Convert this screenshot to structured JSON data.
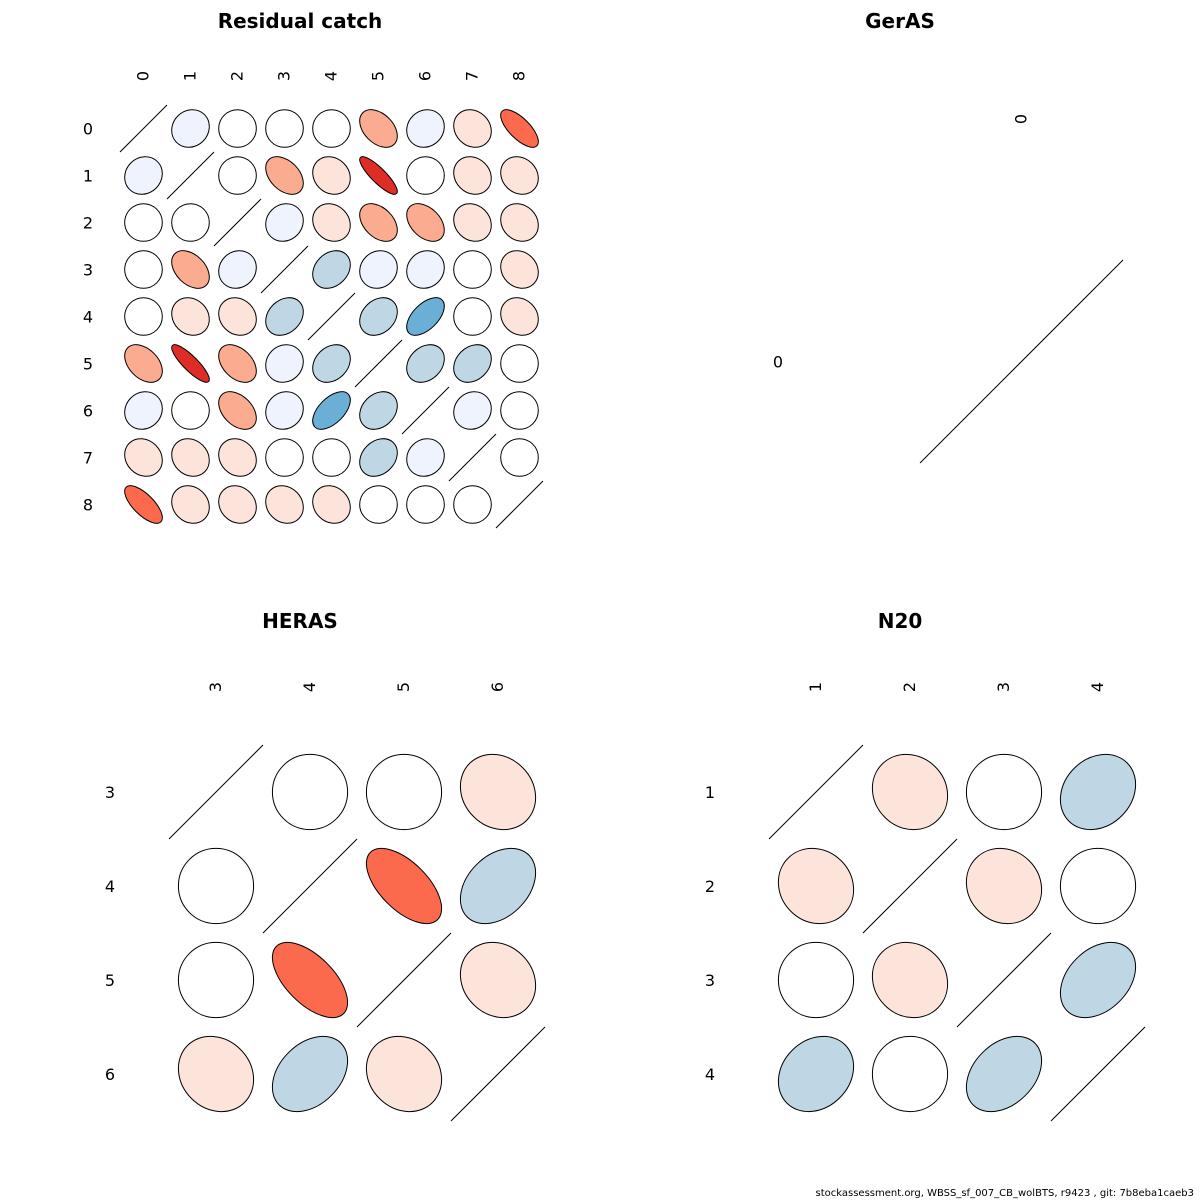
{
  "chart_data": [
    {
      "type": "heatmap",
      "style": "ellipse-correlation",
      "title": "Residual catch",
      "labels": [
        "0",
        "1",
        "2",
        "3",
        "4",
        "5",
        "6",
        "7",
        "8"
      ],
      "matrix": [
        [
          1.0,
          0.1,
          0.0,
          0.0,
          0.0,
          -0.4,
          0.1,
          -0.15,
          -0.7
        ],
        [
          0.1,
          1.0,
          0.0,
          -0.4,
          -0.15,
          -0.85,
          0.0,
          -0.15,
          -0.15
        ],
        [
          0.0,
          0.0,
          1.0,
          0.1,
          -0.15,
          -0.4,
          -0.4,
          -0.15,
          -0.15
        ],
        [
          0.0,
          -0.4,
          0.1,
          1.0,
          0.25,
          0.1,
          0.1,
          0.0,
          -0.15
        ],
        [
          0.0,
          -0.15,
          -0.15,
          0.25,
          1.0,
          0.25,
          0.55,
          0.0,
          -0.15
        ],
        [
          -0.4,
          -0.85,
          -0.4,
          0.1,
          0.25,
          1.0,
          0.25,
          0.25,
          0.0
        ],
        [
          0.1,
          0.0,
          -0.4,
          0.1,
          0.55,
          0.25,
          1.0,
          0.1,
          0.0
        ],
        [
          -0.15,
          -0.15,
          -0.15,
          0.0,
          0.0,
          0.25,
          0.1,
          1.0,
          0.0
        ],
        [
          -0.7,
          -0.15,
          -0.15,
          -0.15,
          -0.15,
          0.0,
          0.0,
          0.0,
          1.0
        ]
      ]
    },
    {
      "type": "heatmap",
      "style": "ellipse-correlation",
      "title": "GerAS",
      "labels": [
        "0"
      ],
      "matrix": [
        [
          1.0
        ]
      ]
    },
    {
      "type": "heatmap",
      "style": "ellipse-correlation",
      "title": "HERAS",
      "labels": [
        "3",
        "4",
        "5",
        "6"
      ],
      "matrix": [
        [
          1.0,
          0.0,
          0.0,
          -0.15
        ],
        [
          0.0,
          1.0,
          -0.6,
          0.35
        ],
        [
          0.0,
          -0.6,
          1.0,
          -0.15
        ],
        [
          -0.15,
          0.35,
          -0.15,
          1.0
        ]
      ]
    },
    {
      "type": "heatmap",
      "style": "ellipse-correlation",
      "title": "N20",
      "labels": [
        "1",
        "2",
        "3",
        "4"
      ],
      "matrix": [
        [
          1.0,
          -0.1,
          0.0,
          0.2
        ],
        [
          -0.1,
          1.0,
          -0.1,
          0.0
        ],
        [
          0.0,
          -0.1,
          1.0,
          0.35
        ],
        [
          0.2,
          0.0,
          0.35,
          1.0
        ]
      ]
    }
  ],
  "colors": {
    "pos_weak": "#eef3fd",
    "pos_mid": "#bfd6e4",
    "pos_strong": "#6baed6",
    "neg_weak": "#fde4da",
    "neg_mid": "#fbab8f",
    "neg_strong": "#fc6a4e",
    "neg_vstrong": "#de2d26",
    "zero": "#ffffff",
    "stroke": "#000000"
  },
  "footer": "stockassessment.org, WBSS_sf_007_CB_wolBTS, r9423 , git: 7b8eba1caeb3"
}
